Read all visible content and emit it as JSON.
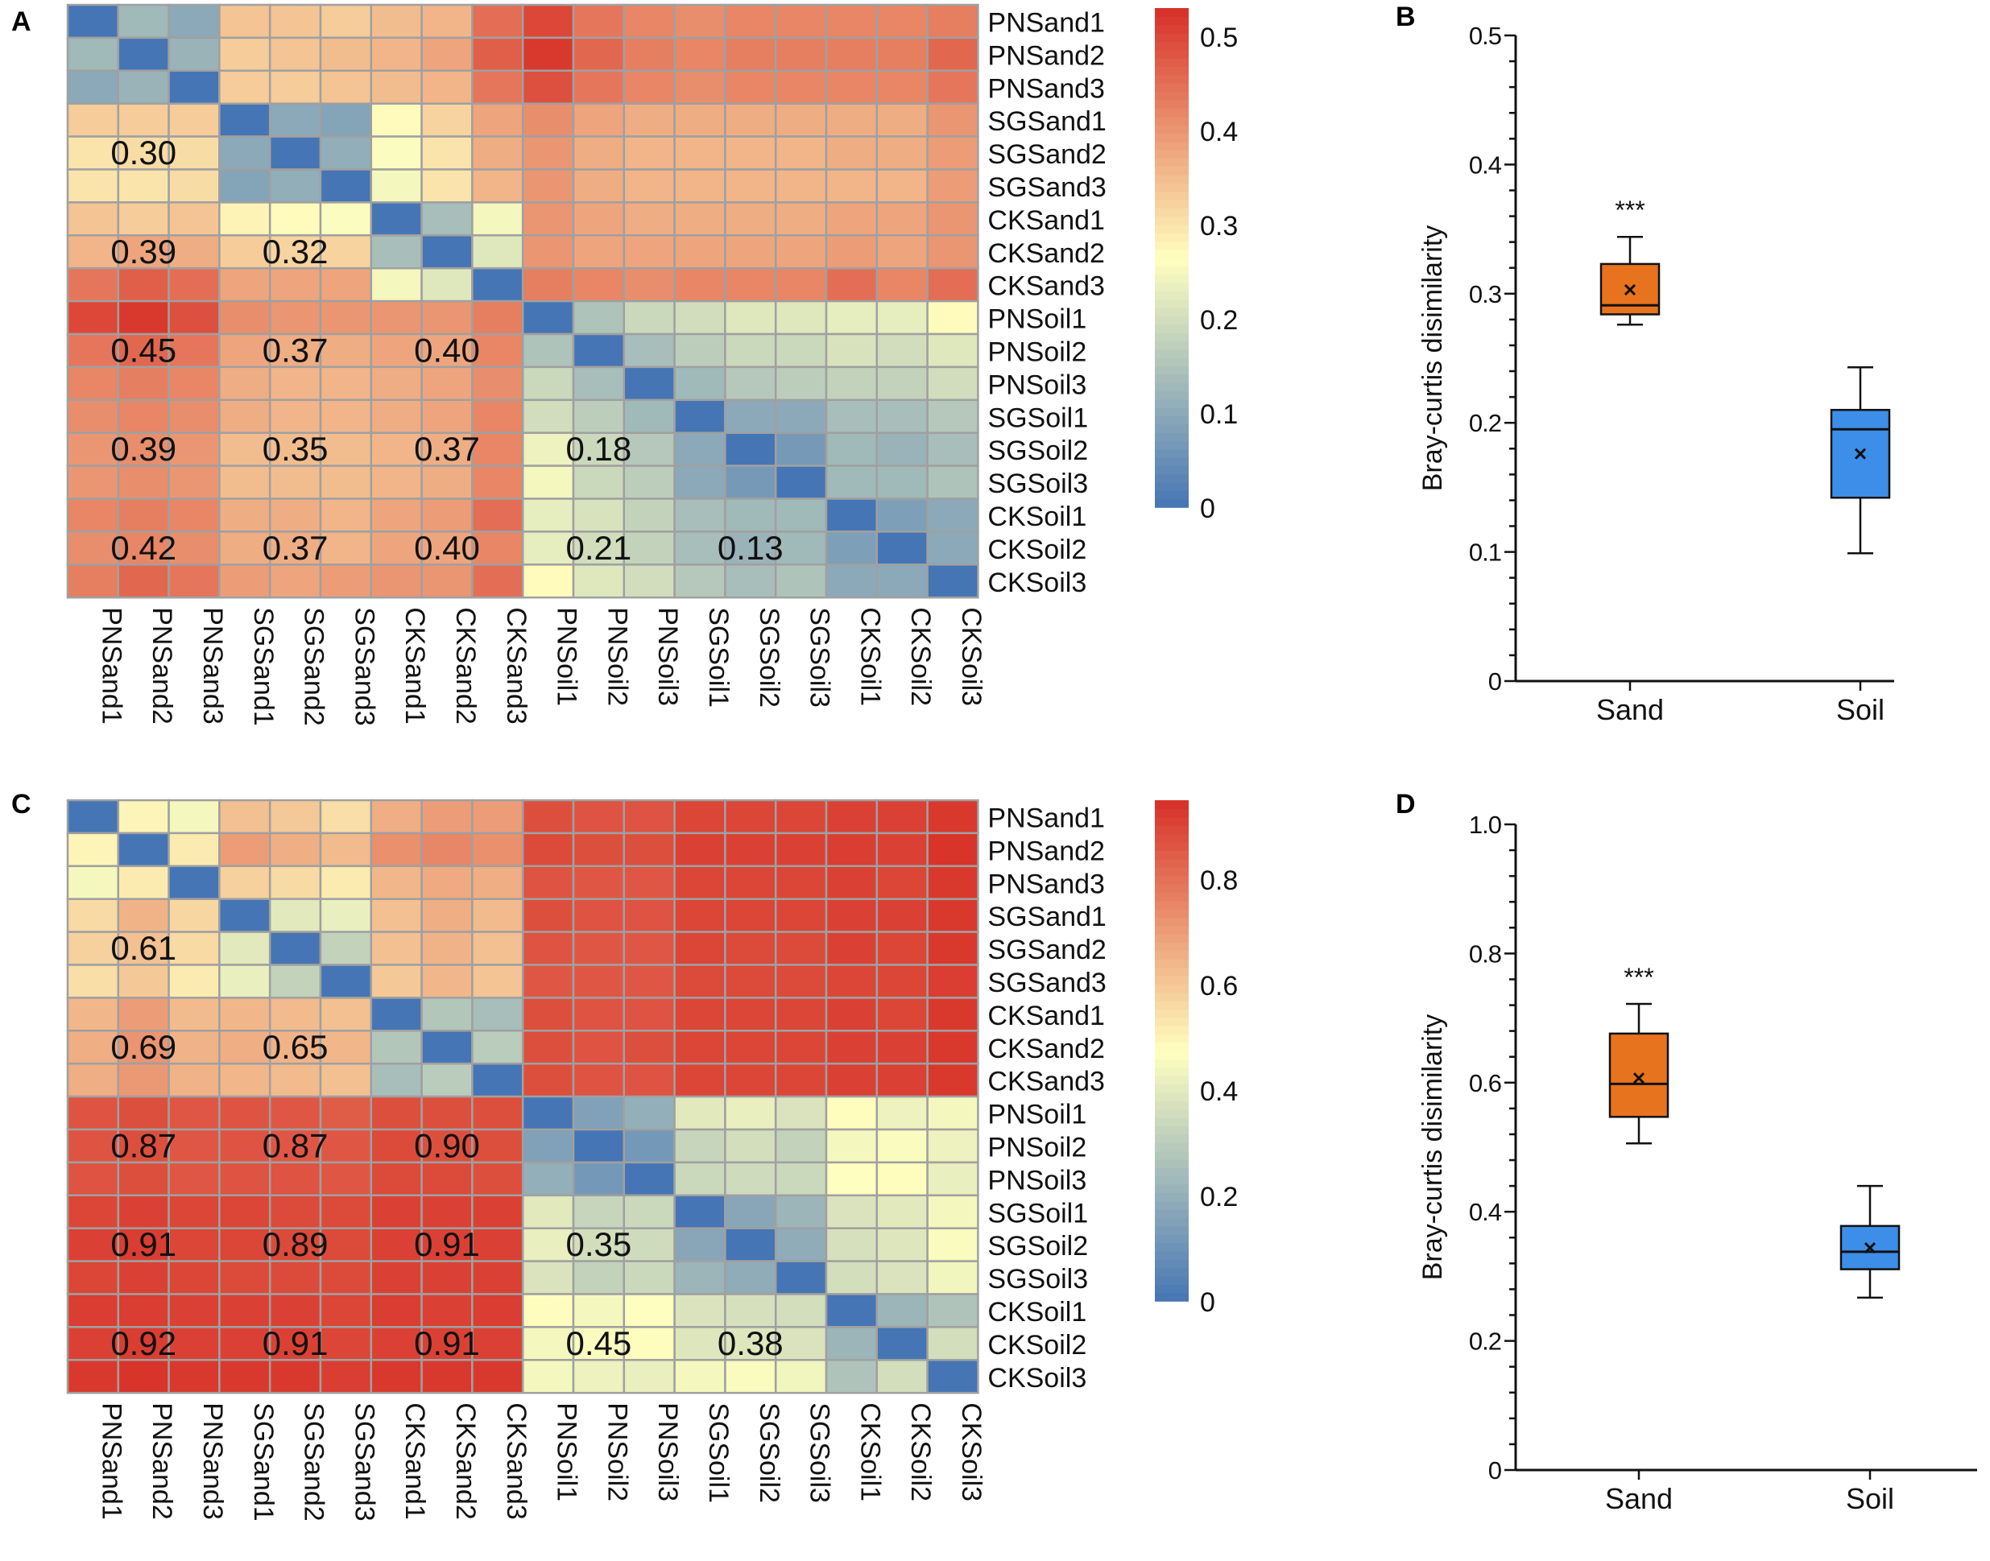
{
  "panels": {
    "A": {
      "letter": "A"
    },
    "B": {
      "letter": "B"
    },
    "C": {
      "letter": "C"
    },
    "D": {
      "letter": "D"
    }
  },
  "colors": {
    "low": "#4575b4",
    "mid": "#ffffbf",
    "high": "#d73027",
    "grid": "#a0a0a0",
    "sand_box": "#e8731e",
    "soil_box": "#3d8ee8"
  },
  "chart_data": [
    {
      "id": "A",
      "type": "heatmap",
      "title": "",
      "samples": [
        "PNSand1",
        "PNSand2",
        "PNSand3",
        "SGSand1",
        "SGSand2",
        "SGSand3",
        "CKSand1",
        "CKSand2",
        "CKSand3",
        "PNSoil1",
        "PNSoil2",
        "PNSoil3",
        "SGSoil1",
        "SGSoil2",
        "SGSoil3",
        "CKSoil1",
        "CKSoil2",
        "CKSoil3"
      ],
      "colorbar": {
        "min": 0,
        "max": 0.53,
        "ticks": [
          "0",
          "0.1",
          "0.2",
          "0.3",
          "0.4",
          "0.5"
        ],
        "tick_values": [
          0,
          0.1,
          0.2,
          0.3,
          0.4,
          0.5
        ]
      },
      "matrix": [
        [
          0.0,
          0.13,
          0.1,
          0.34,
          0.34,
          0.33,
          0.35,
          0.36,
          0.45,
          0.5,
          0.44,
          0.42,
          0.41,
          0.42,
          0.42,
          0.42,
          0.42,
          0.43
        ],
        [
          0.13,
          0.0,
          0.12,
          0.33,
          0.34,
          0.35,
          0.36,
          0.38,
          0.47,
          0.52,
          0.46,
          0.43,
          0.42,
          0.43,
          0.43,
          0.43,
          0.43,
          0.46
        ],
        [
          0.1,
          0.12,
          0.0,
          0.33,
          0.33,
          0.34,
          0.35,
          0.36,
          0.44,
          0.49,
          0.44,
          0.42,
          0.41,
          0.42,
          0.42,
          0.42,
          0.42,
          0.44
        ],
        [
          0.33,
          0.33,
          0.33,
          0.0,
          0.1,
          0.09,
          0.27,
          0.32,
          0.38,
          0.41,
          0.38,
          0.37,
          0.37,
          0.37,
          0.37,
          0.37,
          0.37,
          0.4
        ],
        [
          0.3,
          0.31,
          0.31,
          0.1,
          0.0,
          0.11,
          0.26,
          0.3,
          0.37,
          0.4,
          0.37,
          0.36,
          0.36,
          0.36,
          0.36,
          0.37,
          0.37,
          0.39
        ],
        [
          0.3,
          0.3,
          0.31,
          0.09,
          0.11,
          0.0,
          0.25,
          0.3,
          0.36,
          0.4,
          0.37,
          0.36,
          0.36,
          0.36,
          0.36,
          0.36,
          0.36,
          0.39
        ],
        [
          0.34,
          0.33,
          0.34,
          0.28,
          0.27,
          0.26,
          0.0,
          0.14,
          0.25,
          0.4,
          0.38,
          0.37,
          0.37,
          0.37,
          0.37,
          0.38,
          0.38,
          0.4
        ],
        [
          0.36,
          0.38,
          0.37,
          0.33,
          0.32,
          0.32,
          0.14,
          0.0,
          0.22,
          0.4,
          0.38,
          0.38,
          0.38,
          0.38,
          0.38,
          0.39,
          0.38,
          0.4
        ],
        [
          0.44,
          0.47,
          0.45,
          0.38,
          0.38,
          0.38,
          0.25,
          0.22,
          0.0,
          0.43,
          0.42,
          0.41,
          0.42,
          0.42,
          0.42,
          0.45,
          0.42,
          0.45
        ],
        [
          0.5,
          0.52,
          0.49,
          0.41,
          0.4,
          0.4,
          0.4,
          0.4,
          0.43,
          0.0,
          0.15,
          0.19,
          0.2,
          0.22,
          0.22,
          0.23,
          0.23,
          0.27
        ],
        [
          0.44,
          0.46,
          0.44,
          0.38,
          0.37,
          0.37,
          0.38,
          0.38,
          0.42,
          0.15,
          0.0,
          0.14,
          0.17,
          0.19,
          0.19,
          0.21,
          0.2,
          0.22
        ],
        [
          0.42,
          0.43,
          0.42,
          0.37,
          0.36,
          0.36,
          0.37,
          0.38,
          0.41,
          0.19,
          0.14,
          0.0,
          0.13,
          0.16,
          0.17,
          0.18,
          0.18,
          0.2
        ],
        [
          0.41,
          0.42,
          0.41,
          0.37,
          0.36,
          0.36,
          0.37,
          0.38,
          0.42,
          0.2,
          0.17,
          0.13,
          0.0,
          0.1,
          0.1,
          0.14,
          0.14,
          0.16
        ],
        [
          0.4,
          0.41,
          0.4,
          0.35,
          0.35,
          0.35,
          0.36,
          0.37,
          0.42,
          0.24,
          0.19,
          0.16,
          0.1,
          0.0,
          0.07,
          0.13,
          0.12,
          0.14
        ],
        [
          0.4,
          0.41,
          0.4,
          0.35,
          0.35,
          0.35,
          0.36,
          0.37,
          0.42,
          0.25,
          0.19,
          0.17,
          0.1,
          0.07,
          0.0,
          0.13,
          0.13,
          0.15
        ],
        [
          0.42,
          0.43,
          0.42,
          0.37,
          0.37,
          0.36,
          0.38,
          0.39,
          0.45,
          0.23,
          0.21,
          0.18,
          0.14,
          0.13,
          0.13,
          0.0,
          0.08,
          0.1
        ],
        [
          0.41,
          0.42,
          0.41,
          0.37,
          0.37,
          0.36,
          0.38,
          0.38,
          0.42,
          0.23,
          0.2,
          0.18,
          0.14,
          0.12,
          0.13,
          0.08,
          0.0,
          0.1
        ],
        [
          0.43,
          0.46,
          0.44,
          0.39,
          0.38,
          0.39,
          0.4,
          0.4,
          0.45,
          0.27,
          0.22,
          0.2,
          0.16,
          0.14,
          0.15,
          0.1,
          0.1,
          0.0
        ]
      ],
      "annotations": [
        {
          "row": 4,
          "col": 1,
          "text": "0.30"
        },
        {
          "row": 7,
          "col": 1,
          "text": "0.39"
        },
        {
          "row": 7,
          "col": 4,
          "text": "0.32"
        },
        {
          "row": 10,
          "col": 1,
          "text": "0.45"
        },
        {
          "row": 10,
          "col": 4,
          "text": "0.37"
        },
        {
          "row": 10,
          "col": 7,
          "text": "0.40"
        },
        {
          "row": 13,
          "col": 1,
          "text": "0.39"
        },
        {
          "row": 13,
          "col": 4,
          "text": "0.35"
        },
        {
          "row": 13,
          "col": 7,
          "text": "0.37"
        },
        {
          "row": 13,
          "col": 10,
          "text": "0.18"
        },
        {
          "row": 16,
          "col": 1,
          "text": "0.42"
        },
        {
          "row": 16,
          "col": 4,
          "text": "0.37"
        },
        {
          "row": 16,
          "col": 7,
          "text": "0.40"
        },
        {
          "row": 16,
          "col": 10,
          "text": "0.21"
        },
        {
          "row": 16,
          "col": 13,
          "text": "0.13"
        }
      ]
    },
    {
      "id": "B",
      "type": "box",
      "title": "",
      "xlabel": "",
      "ylabel": "Bray-curtis disimilarity",
      "ylim": [
        0,
        0.5
      ],
      "yticks": [
        "0",
        "0.1",
        "0.2",
        "0.3",
        "0.4",
        "0.5"
      ],
      "ytick_values": [
        0,
        0.1,
        0.2,
        0.3,
        0.4,
        0.5
      ],
      "categories": [
        "Sand",
        "Soil"
      ],
      "boxes": [
        {
          "name": "Sand",
          "min": 0.276,
          "q1": 0.284,
          "median": 0.291,
          "q3": 0.323,
          "max": 0.344,
          "mean": 0.303,
          "significance": "***"
        },
        {
          "name": "Soil",
          "min": 0.099,
          "q1": 0.142,
          "median": 0.195,
          "q3": 0.21,
          "max": 0.243,
          "mean": 0.176,
          "significance": ""
        }
      ]
    },
    {
      "id": "C",
      "type": "heatmap",
      "title": "",
      "samples": [
        "PNSand1",
        "PNSand2",
        "PNSand3",
        "SGSand1",
        "SGSand2",
        "SGSand3",
        "CKSand1",
        "CKSand2",
        "CKSand3",
        "PNSoil1",
        "PNSoil2",
        "PNSoil3",
        "SGSoil1",
        "SGSoil2",
        "SGSoil3",
        "CKSoil1",
        "CKSoil2",
        "CKSoil3"
      ],
      "colorbar": {
        "min": 0,
        "max": 0.95,
        "ticks": [
          "0",
          "0.2",
          "0.4",
          "0.6",
          "0.8"
        ],
        "tick_values": [
          0,
          0.2,
          0.4,
          0.6,
          0.8
        ]
      },
      "matrix": [
        [
          0.0,
          0.5,
          0.45,
          0.62,
          0.6,
          0.55,
          0.66,
          0.7,
          0.7,
          0.88,
          0.87,
          0.87,
          0.9,
          0.9,
          0.9,
          0.91,
          0.91,
          0.93
        ],
        [
          0.5,
          0.0,
          0.52,
          0.7,
          0.66,
          0.63,
          0.73,
          0.75,
          0.73,
          0.89,
          0.88,
          0.88,
          0.91,
          0.91,
          0.91,
          0.92,
          0.91,
          0.94
        ],
        [
          0.45,
          0.52,
          0.0,
          0.58,
          0.56,
          0.52,
          0.64,
          0.67,
          0.66,
          0.87,
          0.86,
          0.86,
          0.9,
          0.9,
          0.9,
          0.91,
          0.9,
          0.93
        ],
        [
          0.56,
          0.65,
          0.57,
          0.0,
          0.4,
          0.42,
          0.62,
          0.66,
          0.63,
          0.88,
          0.87,
          0.87,
          0.9,
          0.9,
          0.9,
          0.91,
          0.91,
          0.93
        ],
        [
          0.58,
          0.62,
          0.56,
          0.4,
          0.0,
          0.32,
          0.62,
          0.65,
          0.62,
          0.87,
          0.86,
          0.86,
          0.9,
          0.89,
          0.89,
          0.91,
          0.9,
          0.93
        ],
        [
          0.55,
          0.6,
          0.52,
          0.42,
          0.32,
          0.0,
          0.6,
          0.64,
          0.61,
          0.86,
          0.86,
          0.86,
          0.89,
          0.89,
          0.89,
          0.9,
          0.9,
          0.92
        ],
        [
          0.64,
          0.7,
          0.63,
          0.64,
          0.63,
          0.62,
          0.0,
          0.28,
          0.25,
          0.88,
          0.87,
          0.87,
          0.9,
          0.9,
          0.9,
          0.91,
          0.9,
          0.93
        ],
        [
          0.66,
          0.72,
          0.65,
          0.66,
          0.65,
          0.64,
          0.28,
          0.0,
          0.3,
          0.88,
          0.87,
          0.88,
          0.9,
          0.9,
          0.9,
          0.91,
          0.91,
          0.93
        ],
        [
          0.66,
          0.71,
          0.65,
          0.64,
          0.63,
          0.62,
          0.25,
          0.3,
          0.0,
          0.88,
          0.87,
          0.87,
          0.9,
          0.9,
          0.9,
          0.91,
          0.91,
          0.93
        ],
        [
          0.87,
          0.88,
          0.86,
          0.87,
          0.86,
          0.85,
          0.88,
          0.88,
          0.88,
          0.0,
          0.15,
          0.2,
          0.4,
          0.42,
          0.38,
          0.48,
          0.43,
          0.45
        ],
        [
          0.87,
          0.88,
          0.86,
          0.87,
          0.86,
          0.86,
          0.89,
          0.88,
          0.88,
          0.15,
          0.0,
          0.12,
          0.33,
          0.36,
          0.32,
          0.45,
          0.46,
          0.43
        ],
        [
          0.87,
          0.88,
          0.86,
          0.87,
          0.87,
          0.86,
          0.89,
          0.89,
          0.88,
          0.2,
          0.12,
          0.0,
          0.34,
          0.35,
          0.34,
          0.47,
          0.48,
          0.42
        ],
        [
          0.9,
          0.91,
          0.9,
          0.9,
          0.89,
          0.89,
          0.91,
          0.91,
          0.91,
          0.4,
          0.33,
          0.34,
          0.0,
          0.17,
          0.22,
          0.38,
          0.4,
          0.45
        ],
        [
          0.91,
          0.92,
          0.9,
          0.9,
          0.89,
          0.89,
          0.91,
          0.91,
          0.91,
          0.42,
          0.36,
          0.35,
          0.17,
          0.0,
          0.19,
          0.37,
          0.39,
          0.46
        ],
        [
          0.9,
          0.91,
          0.9,
          0.89,
          0.89,
          0.89,
          0.91,
          0.91,
          0.91,
          0.38,
          0.32,
          0.34,
          0.22,
          0.19,
          0.0,
          0.36,
          0.38,
          0.44
        ],
        [
          0.92,
          0.92,
          0.91,
          0.91,
          0.91,
          0.9,
          0.92,
          0.91,
          0.92,
          0.48,
          0.45,
          0.47,
          0.38,
          0.37,
          0.36,
          0.0,
          0.22,
          0.27
        ],
        [
          0.91,
          0.92,
          0.91,
          0.91,
          0.91,
          0.9,
          0.91,
          0.91,
          0.91,
          0.45,
          0.46,
          0.48,
          0.39,
          0.39,
          0.38,
          0.22,
          0.0,
          0.36
        ],
        [
          0.93,
          0.94,
          0.93,
          0.93,
          0.93,
          0.92,
          0.93,
          0.93,
          0.93,
          0.45,
          0.43,
          0.42,
          0.45,
          0.46,
          0.44,
          0.27,
          0.36,
          0.0
        ]
      ],
      "annotations": [
        {
          "row": 4,
          "col": 1,
          "text": "0.61"
        },
        {
          "row": 7,
          "col": 1,
          "text": "0.69"
        },
        {
          "row": 7,
          "col": 4,
          "text": "0.65"
        },
        {
          "row": 10,
          "col": 1,
          "text": "0.87"
        },
        {
          "row": 10,
          "col": 4,
          "text": "0.87"
        },
        {
          "row": 10,
          "col": 7,
          "text": "0.90"
        },
        {
          "row": 13,
          "col": 1,
          "text": "0.91"
        },
        {
          "row": 13,
          "col": 4,
          "text": "0.89"
        },
        {
          "row": 13,
          "col": 7,
          "text": "0.91"
        },
        {
          "row": 13,
          "col": 10,
          "text": "0.35"
        },
        {
          "row": 16,
          "col": 1,
          "text": "0.92"
        },
        {
          "row": 16,
          "col": 4,
          "text": "0.91"
        },
        {
          "row": 16,
          "col": 7,
          "text": "0.91"
        },
        {
          "row": 16,
          "col": 10,
          "text": "0.45"
        },
        {
          "row": 16,
          "col": 13,
          "text": "0.38"
        }
      ]
    },
    {
      "id": "D",
      "type": "box",
      "title": "",
      "xlabel": "",
      "ylabel": "Bray-curtis disimilarity",
      "ylim": [
        0,
        1.0
      ],
      "yticks": [
        "0",
        "0.2",
        "0.4",
        "0.6",
        "0.8",
        "1.0"
      ],
      "ytick_values": [
        0,
        0.2,
        0.4,
        0.6,
        0.8,
        1.0
      ],
      "categories": [
        "Sand",
        "Soil"
      ],
      "boxes": [
        {
          "name": "Sand",
          "min": 0.506,
          "q1": 0.547,
          "median": 0.598,
          "q3": 0.676,
          "max": 0.722,
          "mean": 0.607,
          "significance": "***"
        },
        {
          "name": "Soil",
          "min": 0.267,
          "q1": 0.311,
          "median": 0.338,
          "q3": 0.378,
          "max": 0.44,
          "mean": 0.344,
          "significance": ""
        }
      ]
    }
  ]
}
